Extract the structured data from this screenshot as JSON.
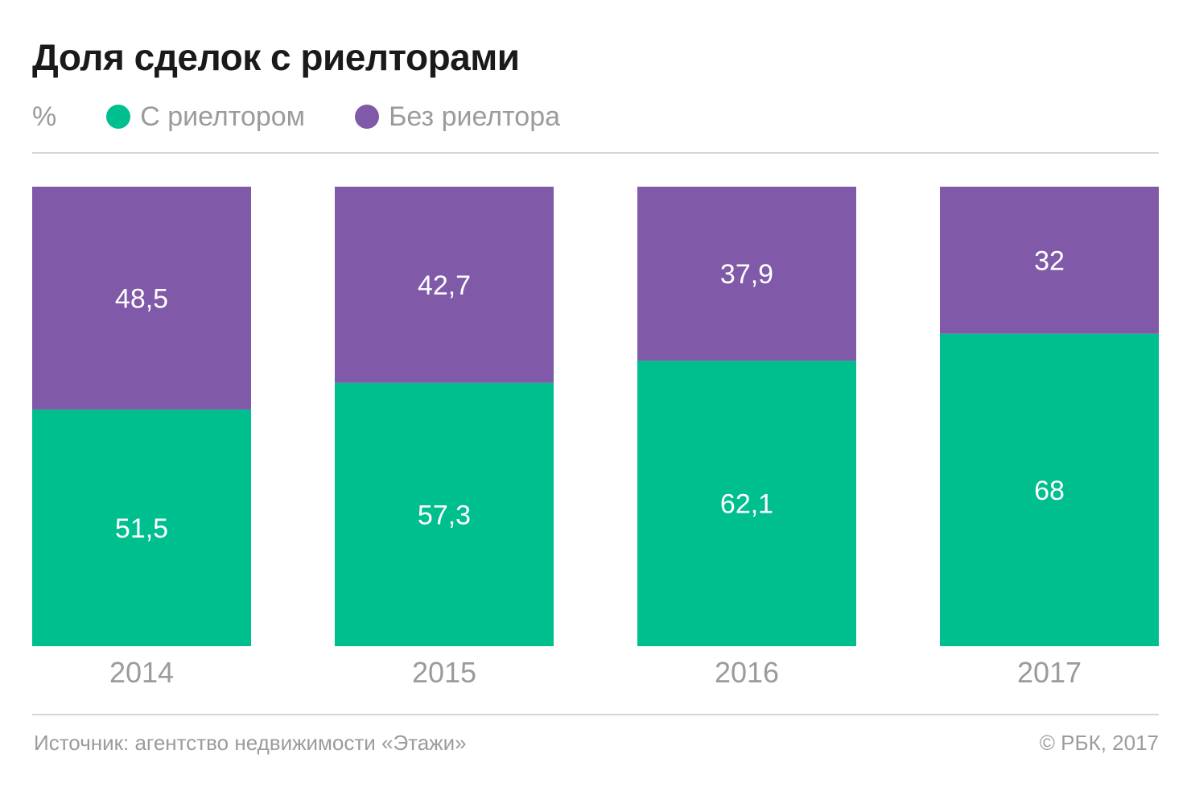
{
  "header": {
    "title": "Доля сделок с риелторами"
  },
  "legend": {
    "unit": "%",
    "items": [
      {
        "label": "С риелтором",
        "color": "#00bf8f"
      },
      {
        "label": "Без риелтора",
        "color": "#8059a8"
      }
    ]
  },
  "footer": {
    "source": "Источник: агентство недвижимости «Этажи»",
    "copyright": "© РБК, 2017"
  },
  "chart_data": {
    "type": "bar",
    "stacked": true,
    "categories": [
      "2014",
      "2015",
      "2016",
      "2017"
    ],
    "series": [
      {
        "name": "С риелтором",
        "color": "#00bf8f",
        "values": [
          51.5,
          57.3,
          62.1,
          68
        ],
        "labels": [
          "51,5",
          "57,3",
          "62,1",
          "68"
        ]
      },
      {
        "name": "Без риелтора",
        "color": "#8059a8",
        "values": [
          48.5,
          42.7,
          37.9,
          32
        ],
        "labels": [
          "48,5",
          "42,7",
          "37,9",
          "32"
        ]
      }
    ],
    "title": "Доля сделок с риелторами",
    "ylabel": "%",
    "ylim": [
      0,
      100
    ],
    "grid": false,
    "legend_position": "top-left"
  }
}
